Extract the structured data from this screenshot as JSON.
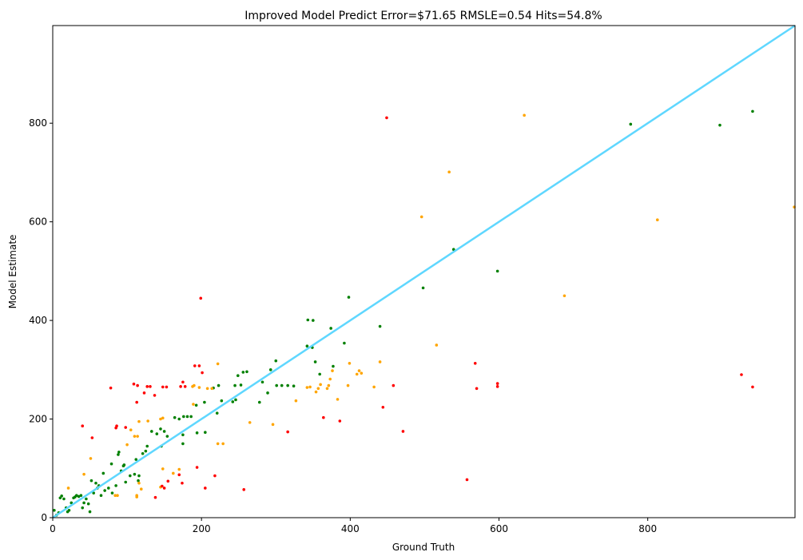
{
  "chart_data": {
    "type": "scatter",
    "title": "Improved Model Predict Error=$71.65 RMSLE=0.54 Hits=54.8%",
    "xlabel": "Ground Truth",
    "ylabel": "Model Estimate",
    "xlim": [
      0,
      998
    ],
    "ylim": [
      0,
      998
    ],
    "xticks": [
      0,
      200,
      400,
      600,
      800
    ],
    "yticks": [
      0,
      200,
      400,
      600,
      800
    ],
    "grid": false,
    "reference_line": {
      "name": "y = x",
      "color": "#5fd7ff"
    },
    "series": [
      {
        "name": "green",
        "color": "#008000",
        "points": [
          [
            2,
            15
          ],
          [
            5,
            5
          ],
          [
            8,
            10
          ],
          [
            10,
            40
          ],
          [
            12,
            44
          ],
          [
            15,
            38
          ],
          [
            18,
            20
          ],
          [
            20,
            12
          ],
          [
            22,
            15
          ],
          [
            25,
            30
          ],
          [
            28,
            40
          ],
          [
            30,
            42
          ],
          [
            32,
            45
          ],
          [
            35,
            43
          ],
          [
            38,
            45
          ],
          [
            40,
            20
          ],
          [
            42,
            30
          ],
          [
            45,
            38
          ],
          [
            48,
            28
          ],
          [
            50,
            12
          ],
          [
            52,
            75
          ],
          [
            55,
            50
          ],
          [
            58,
            70
          ],
          [
            60,
            60
          ],
          [
            62,
            65
          ],
          [
            65,
            45
          ],
          [
            68,
            90
          ],
          [
            70,
            55
          ],
          [
            75,
            60
          ],
          [
            79,
            109
          ],
          [
            80,
            50
          ],
          [
            85,
            65
          ],
          [
            88,
            128
          ],
          [
            89,
            133
          ],
          [
            92,
            95
          ],
          [
            95,
            105
          ],
          [
            96,
            107
          ],
          [
            98,
            72
          ],
          [
            104,
            85
          ],
          [
            110,
            88
          ],
          [
            112,
            118
          ],
          [
            115,
            75
          ],
          [
            116,
            85
          ],
          [
            121,
            130
          ],
          [
            125,
            135
          ],
          [
            127,
            145
          ],
          [
            133,
            175
          ],
          [
            140,
            170
          ],
          [
            145,
            180
          ],
          [
            146,
            145
          ],
          [
            150,
            175
          ],
          [
            154,
            165
          ],
          [
            164,
            203
          ],
          [
            170,
            200
          ],
          [
            176,
            205
          ],
          [
            181,
            205
          ],
          [
            186,
            205
          ],
          [
            175,
            168
          ],
          [
            175,
            150
          ],
          [
            193,
            228
          ],
          [
            194,
            172
          ],
          [
            204,
            234
          ],
          [
            205,
            173
          ],
          [
            216,
            263
          ],
          [
            221,
            212
          ],
          [
            223,
            268
          ],
          [
            227,
            237
          ],
          [
            242,
            235
          ],
          [
            246,
            239
          ],
          [
            245,
            268
          ],
          [
            249,
            288
          ],
          [
            253,
            269
          ],
          [
            256,
            295
          ],
          [
            261,
            296
          ],
          [
            278,
            234
          ],
          [
            282,
            275
          ],
          [
            289,
            253
          ],
          [
            293,
            300
          ],
          [
            300,
            318
          ],
          [
            301,
            268
          ],
          [
            308,
            268
          ],
          [
            316,
            268
          ],
          [
            324,
            267
          ],
          [
            342,
            348
          ],
          [
            343,
            401
          ],
          [
            349,
            345
          ],
          [
            350,
            400
          ],
          [
            353,
            316
          ],
          [
            359,
            291
          ],
          [
            374,
            384
          ],
          [
            377,
            307
          ],
          [
            392,
            354
          ],
          [
            398,
            447
          ],
          [
            440,
            388
          ],
          [
            498,
            466
          ],
          [
            539,
            544
          ],
          [
            598,
            500
          ],
          [
            777,
            798
          ],
          [
            897,
            796
          ],
          [
            941,
            824
          ]
        ]
      },
      {
        "name": "orange",
        "color": "#ffa500",
        "points": [
          [
            21,
            60
          ],
          [
            42,
            88
          ],
          [
            51,
            120
          ],
          [
            84,
            45
          ],
          [
            87,
            45
          ],
          [
            100,
            148
          ],
          [
            105,
            178
          ],
          [
            110,
            165
          ],
          [
            113,
            45
          ],
          [
            114,
            165
          ],
          [
            113,
            42
          ],
          [
            116,
            195
          ],
          [
            116,
            70
          ],
          [
            119,
            58
          ],
          [
            128,
            196
          ],
          [
            145,
            200
          ],
          [
            145,
            62
          ],
          [
            148,
            99
          ],
          [
            148,
            202
          ],
          [
            162,
            90
          ],
          [
            170,
            98
          ],
          [
            188,
            266
          ],
          [
            190,
            268
          ],
          [
            189,
            230
          ],
          [
            197,
            264
          ],
          [
            208,
            262
          ],
          [
            214,
            262
          ],
          [
            222,
            312
          ],
          [
            222,
            150
          ],
          [
            229,
            150
          ],
          [
            265,
            193
          ],
          [
            296,
            189
          ],
          [
            327,
            237
          ],
          [
            342,
            264
          ],
          [
            346,
            265
          ],
          [
            354,
            255
          ],
          [
            357,
            262
          ],
          [
            360,
            270
          ],
          [
            369,
            262
          ],
          [
            371,
            268
          ],
          [
            373,
            281
          ],
          [
            376,
            298
          ],
          [
            383,
            240
          ],
          [
            397,
            268
          ],
          [
            399,
            313
          ],
          [
            409,
            291
          ],
          [
            412,
            298
          ],
          [
            415,
            293
          ],
          [
            432,
            265
          ],
          [
            440,
            316
          ],
          [
            496,
            610
          ],
          [
            516,
            350
          ],
          [
            533,
            701
          ],
          [
            634,
            816
          ],
          [
            688,
            450
          ],
          [
            813,
            604
          ],
          [
            997,
            630
          ]
        ]
      },
      {
        "name": "red",
        "color": "#ff0000",
        "points": [
          [
            40,
            186
          ],
          [
            53,
            162
          ],
          [
            78,
            263
          ],
          [
            85,
            182
          ],
          [
            86,
            186
          ],
          [
            98,
            183
          ],
          [
            109,
            271
          ],
          [
            113,
            234
          ],
          [
            114,
            268
          ],
          [
            123,
            253
          ],
          [
            127,
            266
          ],
          [
            131,
            266
          ],
          [
            137,
            248
          ],
          [
            138,
            41
          ],
          [
            147,
            64
          ],
          [
            150,
            60
          ],
          [
            148,
            265
          ],
          [
            153,
            265
          ],
          [
            155,
            74
          ],
          [
            170,
            87
          ],
          [
            172,
            266
          ],
          [
            174,
            70
          ],
          [
            175,
            275
          ],
          [
            178,
            266
          ],
          [
            191,
            308
          ],
          [
            194,
            102
          ],
          [
            197,
            308
          ],
          [
            199,
            445
          ],
          [
            201,
            294
          ],
          [
            205,
            60
          ],
          [
            218,
            85
          ],
          [
            257,
            57
          ],
          [
            316,
            174
          ],
          [
            364,
            203
          ],
          [
            386,
            196
          ],
          [
            444,
            224
          ],
          [
            449,
            811
          ],
          [
            458,
            268
          ],
          [
            471,
            175
          ],
          [
            557,
            77
          ],
          [
            568,
            313
          ],
          [
            570,
            262
          ],
          [
            598,
            272
          ],
          [
            598,
            266
          ],
          [
            926,
            290
          ],
          [
            941,
            265
          ]
        ]
      }
    ]
  }
}
